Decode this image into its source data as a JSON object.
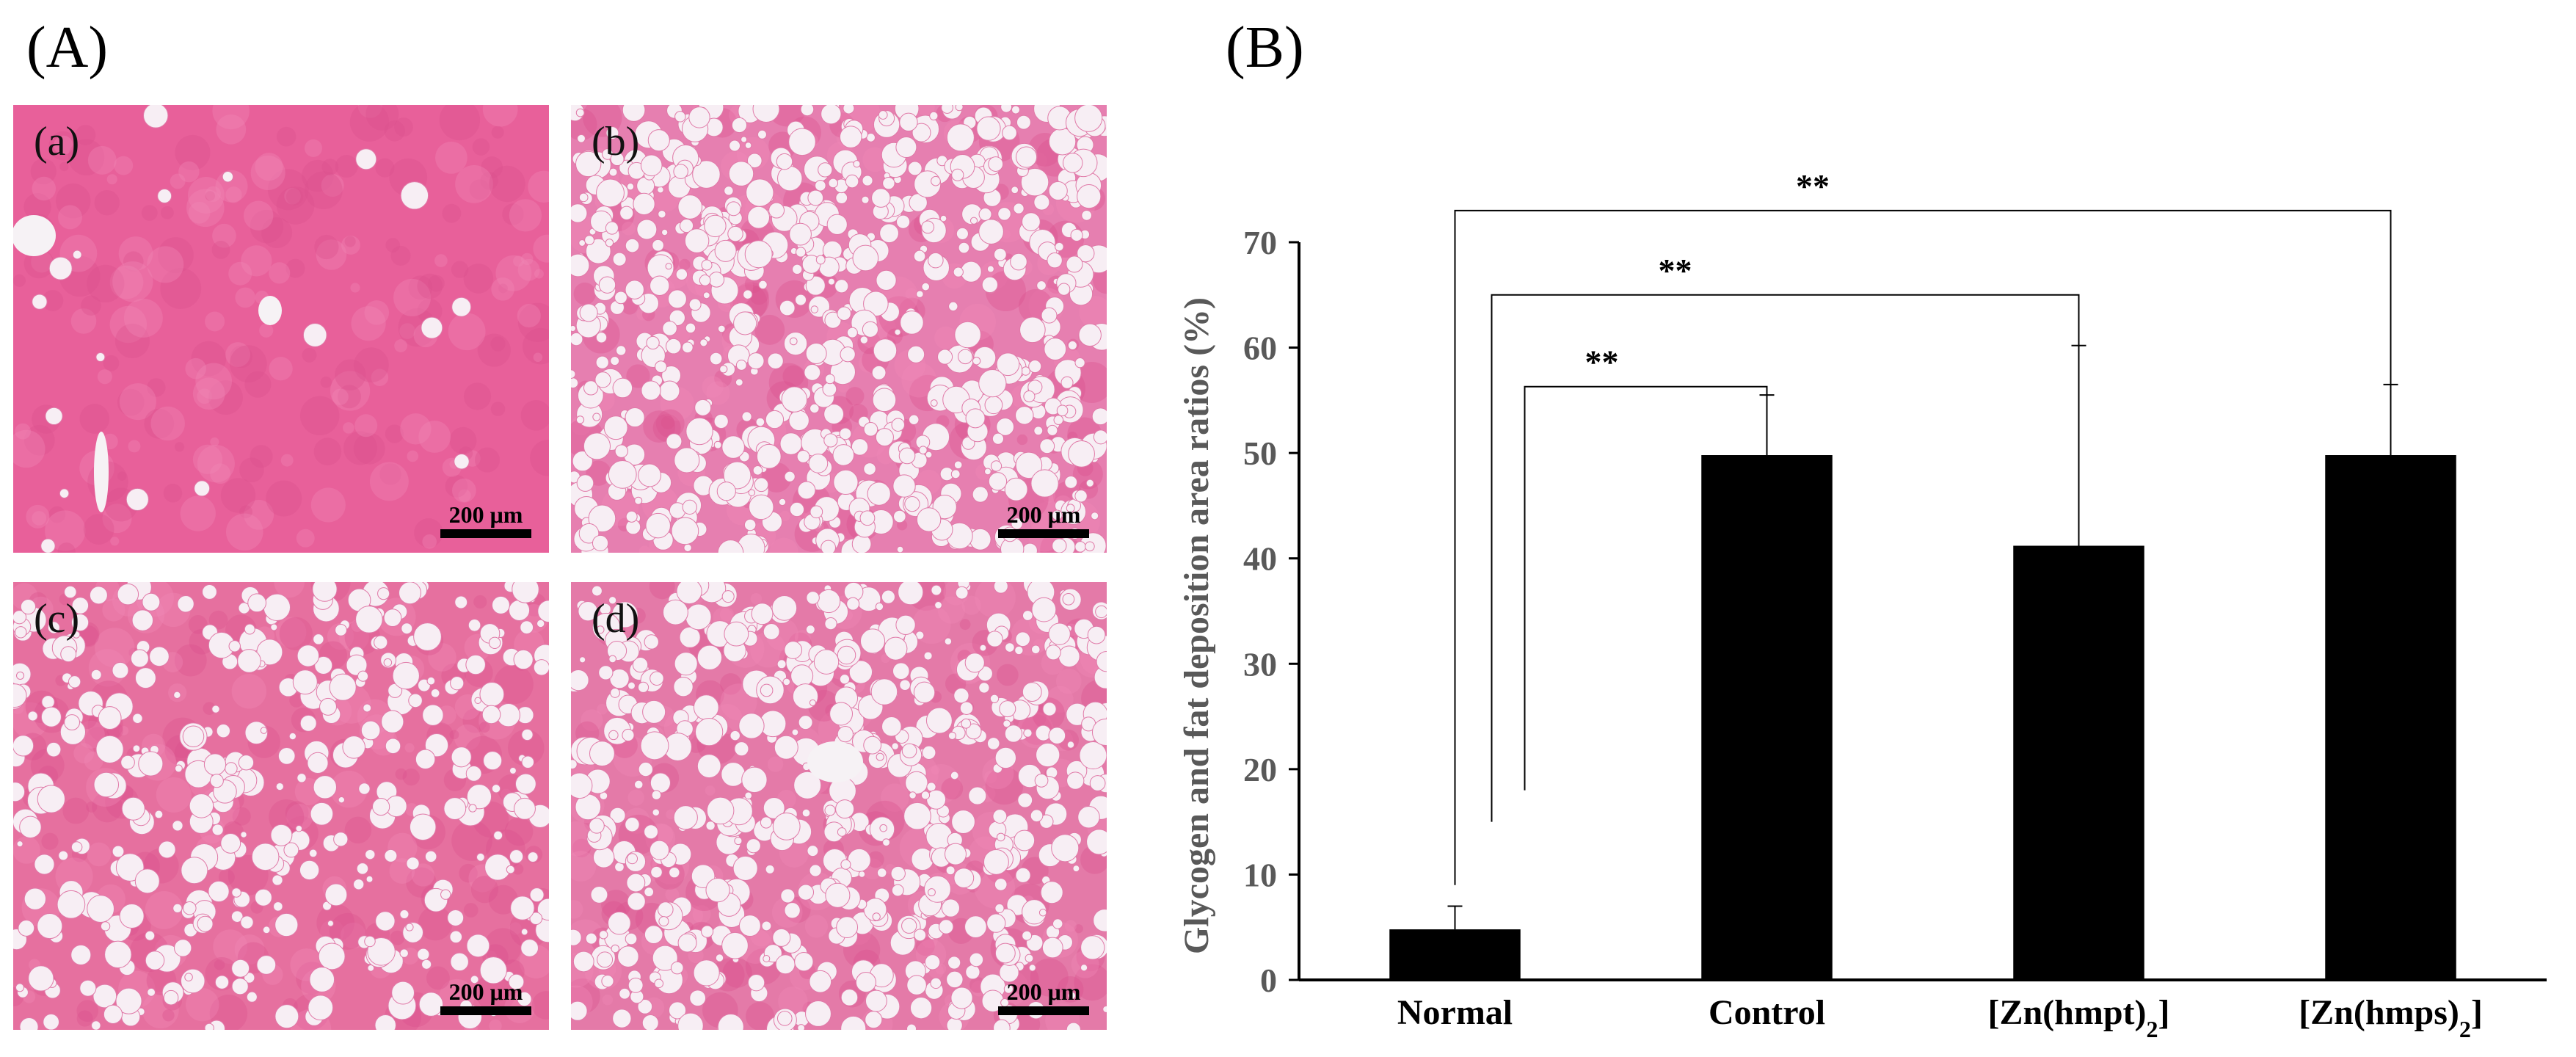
{
  "panel_A_label": "(A)",
  "panel_B_label": "(B)",
  "micrographs": [
    {
      "label": "(a)",
      "scale": "200 μm",
      "vacuole_density": 0.02,
      "tone": "#e8609a"
    },
    {
      "label": "(b)",
      "scale": "200 μm",
      "vacuole_density": 0.85,
      "tone": "#e67fb0"
    },
    {
      "label": "(c)",
      "scale": "200 μm",
      "vacuole_density": 0.45,
      "tone": "#e6709f"
    },
    {
      "label": "(d)",
      "scale": "200 μm",
      "vacuole_density": 0.7,
      "tone": "#e47aa8"
    }
  ],
  "chart_data": {
    "type": "bar",
    "categories": [
      "Normal",
      "Control",
      "[Zn(hmpt)2]",
      "[Zn(hmps)2]"
    ],
    "values": [
      4.8,
      49.8,
      41.2,
      49.8
    ],
    "error_upper": [
      7.0,
      55.5,
      60.2,
      56.5
    ],
    "ylabel": "Glycogen and fat deposition area ratios (%)",
    "xlabel": "",
    "ylim": [
      0,
      70
    ],
    "yticks": [
      0,
      10,
      20,
      30,
      40,
      50,
      60,
      70
    ],
    "bar_color": "#000000",
    "significance": [
      {
        "from": 0,
        "to": 1,
        "label": "**"
      },
      {
        "from": 0,
        "to": 2,
        "label": "**"
      },
      {
        "from": 0,
        "to": 3,
        "label": "**"
      }
    ]
  }
}
